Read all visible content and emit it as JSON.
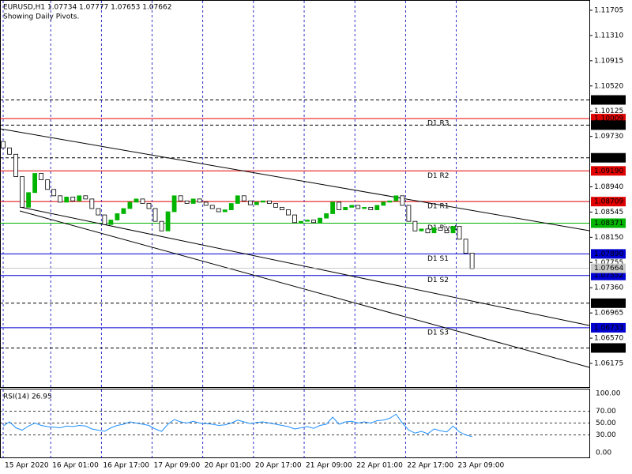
{
  "chart_data": {
    "type": "candlestick",
    "title": "EURUSD,H1  1.07734 1.07777 1.07653 1.07662",
    "subtitle": "Showing Daily Pivots.",
    "up_color": "#00b400",
    "down_color": "#000000",
    "xlim": [
      -1,
      185
    ],
    "ylim": [
      1.05804,
      1.11866
    ],
    "x": [
      0,
      2,
      4,
      6,
      8,
      10,
      12,
      14,
      16,
      18,
      20,
      22,
      24,
      26,
      28,
      30,
      32,
      34,
      36,
      38,
      40,
      42,
      44,
      46,
      48,
      50,
      52,
      54,
      56,
      58,
      60,
      62,
      64,
      66,
      68,
      70,
      72,
      74,
      76,
      78,
      80,
      82,
      84,
      86,
      88,
      90,
      92,
      94,
      96,
      98,
      100,
      102,
      104,
      106,
      108,
      110,
      112,
      114,
      116,
      118,
      120,
      122,
      124,
      126,
      128,
      130,
      132,
      134,
      136,
      138,
      140,
      142,
      144,
      146,
      148
    ],
    "open": [
      1.0965,
      1.0955,
      1.0945,
      1.091,
      1.0862,
      1.0885,
      1.0915,
      1.0905,
      1.089,
      1.088,
      1.087,
      1.0878,
      1.0872,
      1.088,
      1.0875,
      1.086,
      1.085,
      1.0835,
      1.0842,
      1.0852,
      1.086,
      1.087,
      1.0875,
      1.0868,
      1.086,
      1.084,
      1.0825,
      1.0855,
      1.088,
      1.0872,
      1.0868,
      1.0875,
      1.087,
      1.0865,
      1.086,
      1.0855,
      1.0858,
      1.0868,
      1.088,
      1.0872,
      1.0866,
      1.087,
      1.0872,
      1.0868,
      1.0862,
      1.0858,
      1.085,
      1.0838,
      1.084,
      1.0842,
      1.0838,
      1.0845,
      1.0852,
      1.087,
      1.0858,
      1.0862,
      1.0865,
      1.086,
      1.0862,
      1.0858,
      1.0865,
      1.087,
      1.0872,
      1.088,
      1.0865,
      1.084,
      1.0825,
      1.0828,
      1.0822,
      1.083,
      1.0826,
      1.0822,
      1.0832,
      1.0812,
      1.079
    ],
    "close": [
      1.0955,
      1.0945,
      1.091,
      1.0862,
      1.0885,
      1.0915,
      1.0905,
      1.089,
      1.088,
      1.087,
      1.0878,
      1.0872,
      1.088,
      1.0875,
      1.086,
      1.085,
      1.0835,
      1.0842,
      1.0852,
      1.086,
      1.087,
      1.0875,
      1.0868,
      1.086,
      1.084,
      1.0825,
      1.0855,
      1.088,
      1.0872,
      1.0868,
      1.0875,
      1.087,
      1.0865,
      1.086,
      1.0855,
      1.0858,
      1.0868,
      1.088,
      1.0872,
      1.0866,
      1.087,
      1.0872,
      1.0868,
      1.0862,
      1.0858,
      1.085,
      1.0838,
      1.084,
      1.0842,
      1.0838,
      1.0845,
      1.0852,
      1.087,
      1.0858,
      1.0862,
      1.0865,
      1.086,
      1.0862,
      1.0858,
      1.0865,
      1.087,
      1.0872,
      1.088,
      1.0865,
      1.084,
      1.0825,
      1.0828,
      1.0822,
      1.083,
      1.0826,
      1.0822,
      1.0832,
      1.0812,
      1.079,
      1.0766
    ],
    "yticks": [
      {
        "value": 1.11705,
        "label": "1.11705"
      },
      {
        "value": 1.1131,
        "label": "1.11310"
      },
      {
        "value": 1.10915,
        "label": "1.10915"
      },
      {
        "value": 1.1052,
        "label": "1.10520"
      },
      {
        "value": 1.10125,
        "label": "1.10125"
      },
      {
        "value": 1.0973,
        "label": "1.09730"
      },
      {
        "value": 1.0894,
        "label": "1.08940"
      },
      {
        "value": 1.08545,
        "label": "1.08545"
      },
      {
        "value": 1.0815,
        "label": "1.08150"
      },
      {
        "value": 1.07755,
        "label": "1.07755"
      },
      {
        "value": 1.0736,
        "label": "1.07360"
      },
      {
        "value": 1.06965,
        "label": "1.06965"
      },
      {
        "value": 1.0657,
        "label": "1.06570"
      },
      {
        "value": 1.06175,
        "label": "1.06175"
      }
    ],
    "xticks": [
      {
        "value": 0,
        "label": "15 Apr 2020"
      },
      {
        "value": 15,
        "label": "16 Apr 01:00"
      },
      {
        "value": 31,
        "label": "16 Apr 17:00"
      },
      {
        "value": 47,
        "label": "17 Apr 09:00"
      },
      {
        "value": 63,
        "label": "20 Apr 01:00"
      },
      {
        "value": 79,
        "label": "20 Apr 17:00"
      },
      {
        "value": 95,
        "label": "21 Apr 09:00"
      },
      {
        "value": 111,
        "label": "22 Apr 01:00"
      },
      {
        "value": 127,
        "label": "22 Apr 17:00"
      },
      {
        "value": 143,
        "label": "23 Apr 09:00"
      }
    ],
    "levels": [
      {
        "price": 1.10301,
        "color": "#000000",
        "dashed": true
      },
      {
        "price": 1.10009,
        "color": "#e00000",
        "dashed": false,
        "label": "D1 R3"
      },
      {
        "price": 1.09907,
        "color": "#000000",
        "dashed": true
      },
      {
        "price": 1.09395,
        "color": "#000000",
        "dashed": true
      },
      {
        "price": {
          "value": 1.0919,
          "label": "1.09190"
        },
        "color": "#e00000",
        "dashed": false,
        "label": "D1 R2"
      },
      {
        "price": 1.08709,
        "color": "#e00000",
        "dashed": false,
        "label": "D1 R1"
      },
      {
        "price": 1.08371,
        "color": "#00b400",
        "dashed": false,
        "label": "D1 Pivot"
      },
      {
        "price": {
          "value": 1.0789,
          "label": "1.07890"
        },
        "color": "#0000d0",
        "dashed": false,
        "label": "D1 S1"
      },
      {
        "price": 1.07552,
        "color": "#0000d0",
        "dashed": false,
        "label": "D1 S2"
      },
      {
        "price": 1.07118,
        "color": "#000000",
        "dashed": true
      },
      {
        "price": 1.06733,
        "color": "#0000d0",
        "dashed": false,
        "label": "D1 S3"
      },
      {
        "price": 1.06417,
        "color": "#000000",
        "dashed": true
      }
    ],
    "current_price": 1.07664,
    "trendlines": [
      {
        "x": [
          -1,
          185
        ],
        "y": [
          1.09849,
          1.08253
        ]
      },
      {
        "x": [
          5.24,
          185
        ],
        "y": [
          1.08625,
          1.06769
        ]
      },
      {
        "x": [
          5.24,
          185
        ],
        "y": [
          1.08563,
          1.06113
        ]
      }
    ],
    "rsi": {
      "title": "RSI(14) 26.95",
      "color": "#1e90ff",
      "ylim": [
        -9.3,
        108
      ],
      "yticks": [
        {
          "value": 100,
          "label": "100.00"
        },
        {
          "value": 70,
          "label": "70.00"
        },
        {
          "value": 50,
          "label": "50.00"
        },
        {
          "value": 30,
          "label": "30.00"
        },
        {
          "value": 0,
          "label": "0.00"
        }
      ],
      "values": [
        45,
        52,
        42,
        38,
        45,
        50,
        46,
        44,
        43,
        42,
        45,
        44,
        46,
        45,
        40,
        38,
        36,
        42,
        46,
        48,
        52,
        50,
        48,
        46,
        40,
        36,
        48,
        56,
        52,
        50,
        53,
        50,
        49,
        48,
        46,
        47,
        50,
        55,
        52,
        49,
        51,
        52,
        50,
        48,
        46,
        44,
        40,
        42,
        44,
        41,
        46,
        48,
        60,
        48,
        52,
        53,
        50,
        52,
        50,
        54,
        55,
        58,
        65,
        50,
        38,
        33,
        36,
        32,
        40,
        37,
        35,
        45,
        35,
        30,
        26.95
      ]
    }
  }
}
